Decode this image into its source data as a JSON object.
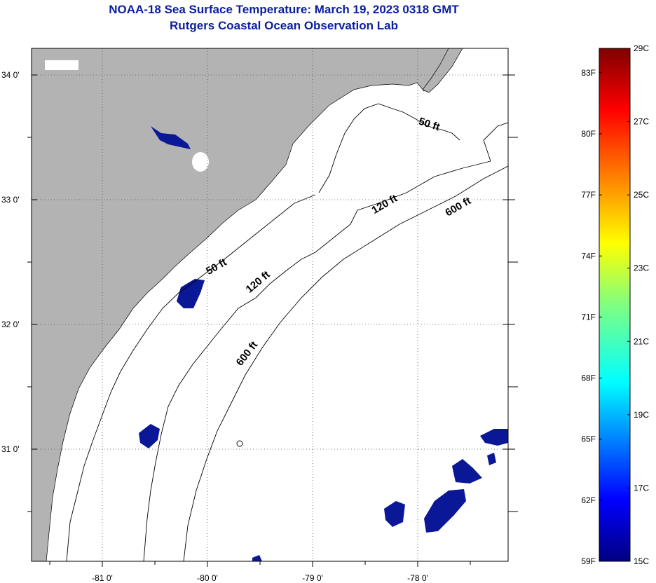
{
  "title": {
    "line1": "NOAA-18 Sea Surface Temperature:  March 19, 2023 0318 GMT",
    "line2": "Rutgers Coastal Ocean Observation Lab"
  },
  "map": {
    "lat_range": [
      30.2,
      34.2
    ],
    "lon_range": [
      -81.7,
      -77.1
    ],
    "lat_ticks": [
      {
        "value": 34,
        "label": "34 0'"
      },
      {
        "value": 33,
        "label": "33 0'"
      },
      {
        "value": 32,
        "label": "32 0'"
      },
      {
        "value": 31,
        "label": "31 0'"
      }
    ],
    "lon_ticks": [
      {
        "value": -81,
        "label": "-81 0'"
      },
      {
        "value": -80,
        "label": "-80 0'"
      },
      {
        "value": -79,
        "label": "-79 0'"
      },
      {
        "value": -78,
        "label": "-78 0'"
      }
    ],
    "colors": {
      "land": "#b3b3b3",
      "ocean": "#ffffff",
      "cold_sst": "#0a1796",
      "contour": "#000000",
      "grid": "#555555"
    },
    "contour_labels": [
      {
        "text": "50 ft",
        "lon": -77.9,
        "lat": 33.58,
        "angle": 18
      },
      {
        "text": "50 ft",
        "lon": -79.9,
        "lat": 32.44,
        "angle": -30
      },
      {
        "text": "120 ft",
        "lon": -78.3,
        "lat": 32.94,
        "angle": -30
      },
      {
        "text": "120 ft",
        "lon": -79.5,
        "lat": 32.32,
        "angle": -40
      },
      {
        "text": "600 ft",
        "lon": -77.6,
        "lat": 32.92,
        "angle": -30
      },
      {
        "text": "600 ft",
        "lon": -79.6,
        "lat": 31.75,
        "angle": -52
      }
    ]
  },
  "colorbar": {
    "vmin_c": 15,
    "vmax_c": 29,
    "celsius": [
      {
        "c": 29,
        "label": "29C"
      },
      {
        "c": 27,
        "label": "27C"
      },
      {
        "c": 25,
        "label": "25C"
      },
      {
        "c": 23,
        "label": "23C"
      },
      {
        "c": 21,
        "label": "21C"
      },
      {
        "c": 19,
        "label": "19C"
      },
      {
        "c": 17,
        "label": "17C"
      },
      {
        "c": 15,
        "label": "15C"
      }
    ],
    "fahrenheit": [
      {
        "f": 83,
        "label": "83F"
      },
      {
        "f": 80,
        "label": "80F"
      },
      {
        "f": 77,
        "label": "77F"
      },
      {
        "f": 74,
        "label": "74F"
      },
      {
        "f": 71,
        "label": "71F"
      },
      {
        "f": 68,
        "label": "68F"
      },
      {
        "f": 65,
        "label": "65F"
      },
      {
        "f": 62,
        "label": "62F"
      },
      {
        "f": 59,
        "label": "59F"
      }
    ]
  }
}
